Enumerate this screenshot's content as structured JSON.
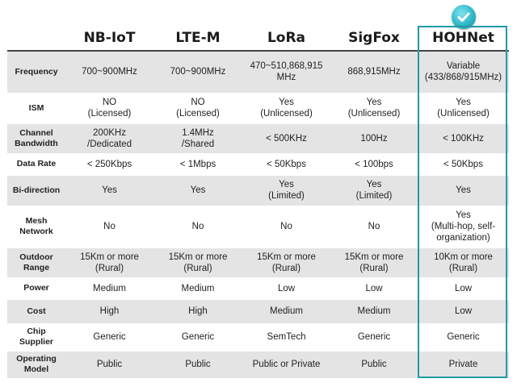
{
  "columns": [
    "",
    "NB-IoT",
    "LTE-M",
    "LoRa",
    "SigFox",
    "HOHNet"
  ],
  "highlight_color": "#1f9aa6",
  "badge_icon": "check-circle-icon",
  "rows": [
    {
      "label": "Frequency",
      "cells": [
        "700~900MHz",
        "700~900MHz",
        "470~510,868,915\nMHz",
        "868,915MHz",
        "Variable\n(433/868/915MHz)"
      ]
    },
    {
      "label": "ISM",
      "cells": [
        "NO\n(Licensed)",
        "NO\n(Licensed)",
        "Yes\n(Unlicensed)",
        "Yes\n(Unlicensed)",
        "Yes\n(Unlicensed)"
      ]
    },
    {
      "label": "Channel\nBandwidth",
      "cells": [
        "200KHz\n/Dedicated",
        "1.4MHz\n/Shared",
        "< 500KHz",
        "100Hz",
        "< 100KHz"
      ]
    },
    {
      "label": "Data Rate",
      "cells": [
        "< 250Kbps",
        "< 1Mbps",
        "< 50Kbps",
        "< 100bps",
        "< 50Kbps"
      ]
    },
    {
      "label": "Bi-direction",
      "cells": [
        "Yes",
        "Yes",
        "Yes\n(Limited)",
        "Yes\n(Limited)",
        "Yes"
      ]
    },
    {
      "label": "Mesh\nNetwork",
      "cells": [
        "No",
        "No",
        "No",
        "No",
        "Yes\n(Multi-hop, self-\norganization)"
      ]
    },
    {
      "label": "Outdoor\nRange",
      "cells": [
        "15Km or more\n(Rural)",
        "15Km or more\n(Rural)",
        "15Km or more\n(Rural)",
        "15Km or more\n(Rural)",
        "10Km or more\n(Rural)"
      ]
    },
    {
      "label": "Power",
      "cells": [
        "Medium",
        "Medium",
        "Low",
        "Low",
        "Low"
      ]
    },
    {
      "label": "Cost",
      "cells": [
        "High",
        "High",
        "Medium",
        "Medium",
        "Low"
      ]
    },
    {
      "label": "Chip\nSupplier",
      "cells": [
        "Generic",
        "Generic",
        "SemTech",
        "Generic",
        "Generic"
      ]
    },
    {
      "label": "Operating\nModel",
      "cells": [
        "Public",
        "Public",
        "Public or Private",
        "Public",
        "Private"
      ]
    }
  ]
}
